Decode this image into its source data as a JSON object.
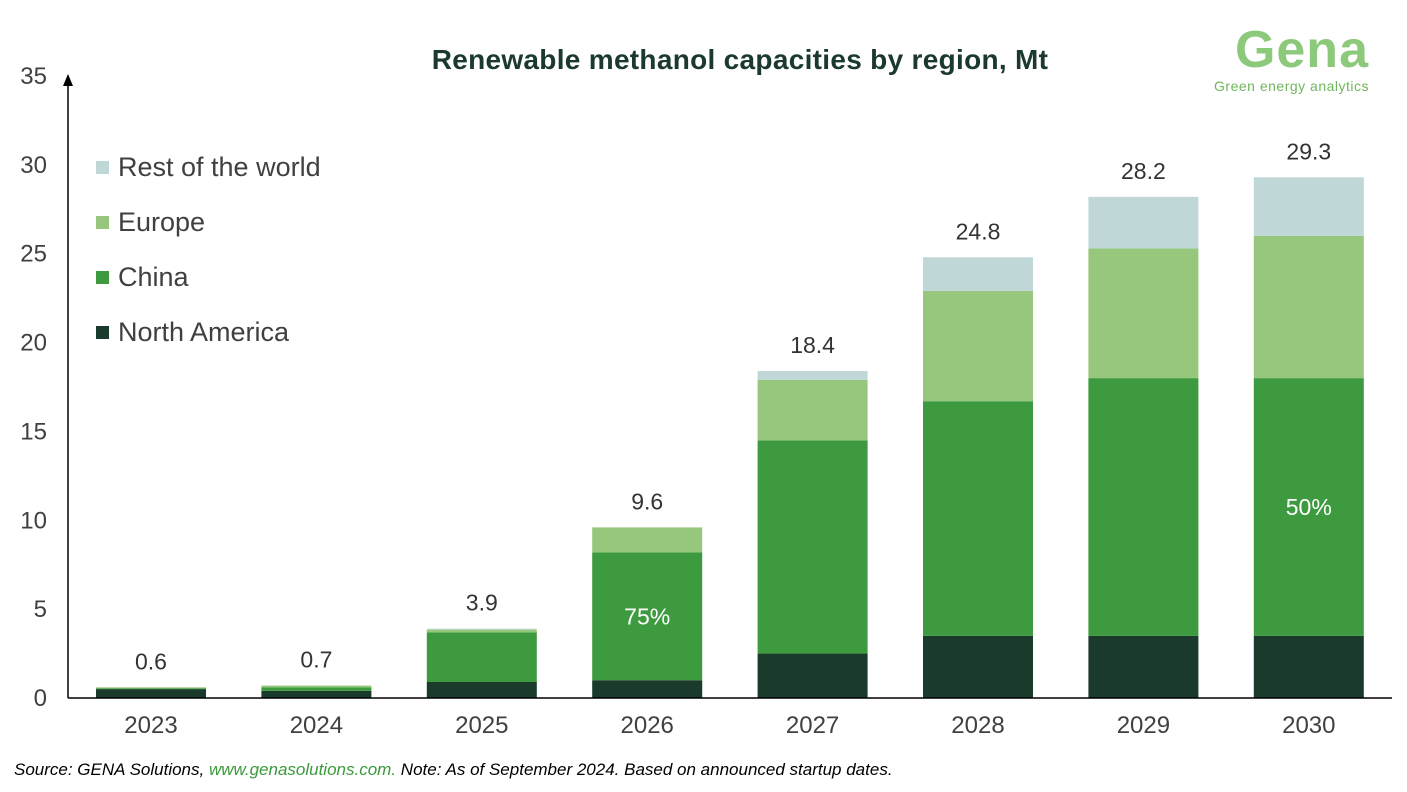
{
  "chart_data": {
    "type": "bar",
    "stacked": true,
    "title": "Renewable methanol capacities by region, Mt",
    "categories": [
      "2023",
      "2024",
      "2025",
      "2026",
      "2027",
      "2028",
      "2029",
      "2030"
    ],
    "series": [
      {
        "name": "North America",
        "color": "#1a3a2c",
        "values": [
          0.5,
          0.4,
          0.9,
          1.0,
          2.5,
          3.5,
          3.5,
          3.5
        ]
      },
      {
        "name": "China",
        "color": "#3d9a3e",
        "values": [
          0.05,
          0.2,
          2.8,
          7.2,
          12.0,
          13.2,
          14.5,
          14.5
        ]
      },
      {
        "name": "Europe",
        "color": "#96c77d",
        "values": [
          0.05,
          0.1,
          0.15,
          1.4,
          3.4,
          6.2,
          7.3,
          8.0
        ]
      },
      {
        "name": "Rest of the world",
        "color": "#bfd7d7",
        "values": [
          0,
          0,
          0.05,
          0,
          0.5,
          1.9,
          2.9,
          3.3
        ]
      }
    ],
    "totals": [
      "0.6",
      "0.7",
      "3.9",
      "9.6",
      "18.4",
      "24.8",
      "28.2",
      "29.3"
    ],
    "annotations": [
      {
        "category": "2026",
        "series": "China",
        "text": "75%"
      },
      {
        "category": "2030",
        "series": "China",
        "text": "50%"
      }
    ],
    "ylim": [
      0,
      35
    ],
    "yticks": [
      0,
      5,
      10,
      15,
      20,
      25,
      30,
      35
    ],
    "xlabel": "",
    "ylabel": "",
    "legend_position": "top-left",
    "grid": false
  },
  "logo": {
    "name": "Gena",
    "tagline": "Green energy analytics"
  },
  "footer": {
    "source_prefix": "Source: GENA Solutions, ",
    "source_link": "www.genasolutions.com.",
    "note": " Note: As of September 2024. Based on announced startup dates."
  }
}
